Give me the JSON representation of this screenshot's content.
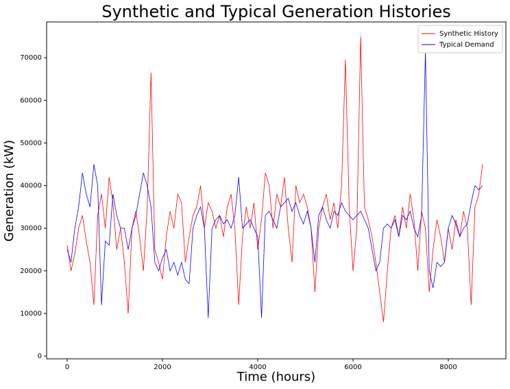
{
  "chart_data": {
    "type": "line",
    "title": "Synthetic and Typical Generation Histories",
    "x_label": "Time (hours)",
    "y_label": "Generation (kW)",
    "x": [
      0,
      80,
      160,
      240,
      320,
      400,
      480,
      560,
      640,
      720,
      800,
      880,
      960,
      1040,
      1120,
      1200,
      1280,
      1360,
      1440,
      1520,
      1600,
      1680,
      1760,
      1840,
      1920,
      2000,
      2080,
      2160,
      2240,
      2320,
      2400,
      2480,
      2560,
      2640,
      2720,
      2800,
      2880,
      2960,
      3040,
      3120,
      3200,
      3280,
      3360,
      3440,
      3520,
      3600,
      3680,
      3760,
      3840,
      3920,
      4000,
      4080,
      4160,
      4240,
      4320,
      4400,
      4480,
      4560,
      4640,
      4720,
      4800,
      4880,
      4960,
      5040,
      5120,
      5200,
      5280,
      5360,
      5440,
      5520,
      5600,
      5680,
      5760,
      5840,
      5920,
      6000,
      6080,
      6160,
      6240,
      6320,
      6400,
      6480,
      6560,
      6640,
      6720,
      6800,
      6880,
      6960,
      7040,
      7120,
      7200,
      7280,
      7360,
      7440,
      7520,
      7600,
      7680,
      7760,
      7840,
      7920,
      8000,
      8080,
      8160,
      8240,
      8320,
      8400,
      8480,
      8560,
      8640,
      8720
    ],
    "series": [
      {
        "name": "Synthetic History",
        "color": "#ff0000",
        "values": [
          26000,
          20000,
          24000,
          30000,
          33000,
          27000,
          22000,
          12000,
          33000,
          38000,
          30000,
          42000,
          36000,
          25000,
          30000,
          22000,
          10000,
          30000,
          34000,
          28000,
          20000,
          35000,
          66500,
          25000,
          22000,
          18000,
          28000,
          34000,
          30000,
          38000,
          36000,
          22000,
          28000,
          33000,
          35000,
          40000,
          30000,
          36000,
          34000,
          30000,
          33000,
          28000,
          35000,
          38000,
          30000,
          12000,
          28000,
          35000,
          30000,
          36000,
          25000,
          32000,
          43000,
          40000,
          30000,
          38000,
          35000,
          42000,
          30000,
          22000,
          40000,
          36000,
          38000,
          35000,
          30000,
          15000,
          30000,
          35000,
          38000,
          32000,
          36000,
          30000,
          40000,
          69500,
          35000,
          20000,
          30000,
          75000,
          35000,
          32000,
          28000,
          22000,
          15000,
          8000,
          20000,
          30000,
          33000,
          28000,
          35000,
          30000,
          38000,
          32000,
          20000,
          34000,
          30000,
          15000,
          25000,
          32000,
          28000,
          22000,
          30000,
          25000,
          32000,
          28000,
          34000,
          30000,
          12000,
          35000,
          38000,
          45000
        ]
      },
      {
        "name": "Typical Demand",
        "color": "#0000ff",
        "values": [
          25000,
          22000,
          30000,
          35000,
          43000,
          38000,
          35000,
          45000,
          40000,
          12000,
          27000,
          26000,
          38000,
          33000,
          30000,
          30000,
          25000,
          30000,
          33000,
          38000,
          43000,
          40000,
          35000,
          22000,
          20000,
          23000,
          25000,
          20000,
          22000,
          19000,
          22000,
          18000,
          17000,
          30000,
          33000,
          35000,
          30000,
          9000,
          30000,
          32000,
          33000,
          31000,
          32000,
          30000,
          33000,
          42000,
          30000,
          31000,
          32000,
          30000,
          28000,
          9000,
          33000,
          34000,
          32000,
          30000,
          35000,
          36000,
          37000,
          34000,
          36000,
          33000,
          31000,
          34000,
          30000,
          22000,
          33000,
          35000,
          32000,
          30000,
          34000,
          33000,
          36000,
          34000,
          33000,
          32000,
          33000,
          34000,
          32000,
          30000,
          25000,
          20000,
          22000,
          30000,
          31000,
          30000,
          32000,
          28000,
          33000,
          32000,
          34000,
          30000,
          28000,
          33000,
          71500,
          20000,
          16000,
          22000,
          21000,
          22000,
          30000,
          33000,
          31000,
          28000,
          30000,
          31000,
          36000,
          40000,
          39000,
          40000
        ]
      }
    ],
    "xlim": [
      -432,
      9209
    ],
    "ylim": [
      -640,
      78400
    ],
    "xticks": [
      0,
      2000,
      4000,
      6000,
      8000
    ],
    "yticks": [
      0,
      10000,
      20000,
      30000,
      40000,
      50000,
      60000,
      70000
    ],
    "legend": "upper right",
    "grid": false
  }
}
